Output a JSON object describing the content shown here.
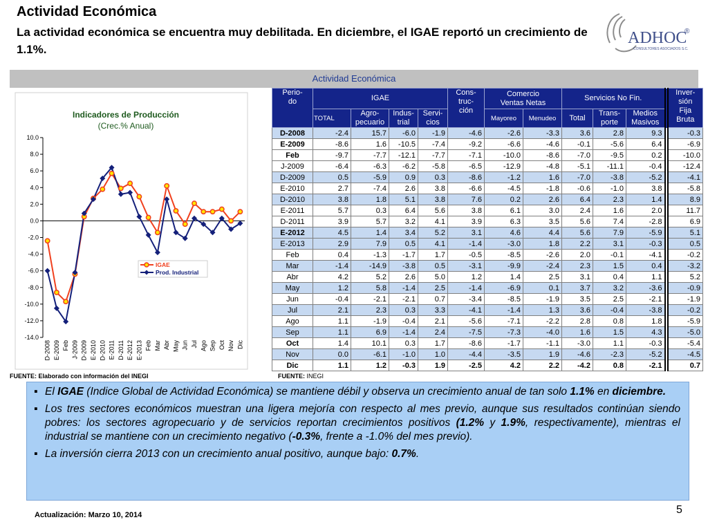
{
  "header": {
    "title": "Actividad Económica",
    "subtitle": "La actividad económica se encuentra muy debilitada. En diciembre, el IGAE reportó un crecimiento de 1.1%."
  },
  "logo": {
    "name": "ADHOC",
    "mark": "®",
    "tagline": "CONSULTORES ASOCIADOS S.C."
  },
  "banner": "Actividad Económica",
  "chart_data": {
    "type": "line",
    "title": "Indicadores de Producción",
    "subtitle": "(Crec.% Anual)",
    "categories": [
      "D-2008",
      "E-2009",
      "Feb",
      "J-2009",
      "D-2009",
      "E-2010",
      "D-2010",
      "E-2011",
      "D-2011",
      "E-2012",
      "E-2013",
      "Feb",
      "Mar",
      "Abr",
      "May",
      "Jun",
      "Jul",
      "Ago",
      "Sep",
      "Oct",
      "Nov",
      "Dic"
    ],
    "series": [
      {
        "name": "IGAE",
        "color": "#f0401e",
        "values": [
          -2.4,
          -8.6,
          -9.7,
          -6.4,
          0.5,
          2.7,
          3.8,
          5.7,
          3.9,
          4.5,
          2.9,
          0.4,
          -1.4,
          4.2,
          1.2,
          -0.4,
          2.1,
          1.1,
          1.1,
          1.4,
          0.0,
          1.1
        ]
      },
      {
        "name": "Prod. Industrial",
        "color": "#14207a",
        "values": [
          -6.0,
          -10.5,
          -12.1,
          -6.2,
          0.9,
          2.6,
          5.1,
          6.4,
          3.2,
          3.4,
          0.5,
          -1.7,
          -3.8,
          2.6,
          -1.4,
          -2.1,
          0.3,
          -0.4,
          -1.4,
          0.3,
          -1.0,
          -0.3
        ]
      }
    ],
    "ylim": [
      -14,
      10
    ],
    "yticks": [
      {
        "value": 10,
        "label": "10.0"
      },
      {
        "value": 8,
        "label": "8.0"
      },
      {
        "value": 6,
        "label": "6.0"
      },
      {
        "value": 4,
        "label": "4.0"
      },
      {
        "value": 2,
        "label": "2.0"
      },
      {
        "value": 0,
        "label": "0.0"
      },
      {
        "value": -2,
        "label": "-2.0"
      },
      {
        "value": -4,
        "label": "-4.0"
      },
      {
        "value": -6,
        "label": "-6.0"
      },
      {
        "value": -8,
        "label": "-8.0"
      },
      {
        "value": -10,
        "label": "-10.0"
      },
      {
        "value": -12,
        "label": "-12.0"
      },
      {
        "value": -14,
        "label": "-14.0"
      }
    ],
    "legend": "center-right"
  },
  "chart_source": "FUENTE: Elaborado con información del INEGI",
  "table": {
    "header": {
      "periodo": "Perio-\ndo",
      "igae": "IGAE",
      "total": "TOTAL",
      "agro": "Agro-\npecuario",
      "indus": "Indus-\ntrial",
      "servi": "Servi-\ncios",
      "cons": "Cons-\ntruc-\nción",
      "comercio": "Comercio\nVentas Netas",
      "mayoreo": "Mayoreo",
      "menudeo": "Menudeo",
      "servicios": "Servicios No Fin.",
      "sn_total": "Total",
      "transporte": "Trans-\nporte",
      "medios": "Medios\nMasivos",
      "inversion": "Inver-\nsión\nFija\nBruta"
    },
    "rows": [
      [
        "D-2008",
        "-2.4",
        "15.7",
        "-6.0",
        "-1.9",
        "-4.6",
        "-2.6",
        "-3.3",
        "3.6",
        "2.8",
        "9.3",
        "-0.3"
      ],
      [
        "E-2009",
        "-8.6",
        "1.6",
        "-10.5",
        "-7.4",
        "-9.2",
        "-6.6",
        "-4.6",
        "-0.1",
        "-5.6",
        "6.4",
        "-6.9"
      ],
      [
        "Feb",
        "-9.7",
        "-7.7",
        "-12.1",
        "-7.7",
        "-7.1",
        "-10.0",
        "-8.6",
        "-7.0",
        "-9.5",
        "0.2",
        "-10.0"
      ],
      [
        "J-2009",
        "-6.4",
        "-6.3",
        "-6.2",
        "-5.8",
        "-6.5",
        "-12.9",
        "-4.8",
        "-5.1",
        "-11.1",
        "-0.4",
        "-12.4"
      ],
      [
        "D-2009",
        "0.5",
        "-5.9",
        "0.9",
        "0.3",
        "-8.6",
        "-1.2",
        "1.6",
        "-7.0",
        "-3.8",
        "-5.2",
        "-4.1"
      ],
      [
        "E-2010",
        "2.7",
        "-7.4",
        "2.6",
        "3.8",
        "-6.6",
        "-4.5",
        "-1.8",
        "-0.6",
        "-1.0",
        "3.8",
        "-5.8"
      ],
      [
        "D-2010",
        "3.8",
        "1.8",
        "5.1",
        "3.8",
        "7.6",
        "0.2",
        "2.6",
        "6.4",
        "2.3",
        "1.4",
        "8.9"
      ],
      [
        "E-2011",
        "5.7",
        "0.3",
        "6.4",
        "5.6",
        "3.8",
        "6.1",
        "3.0",
        "2.4",
        "1.6",
        "2.0",
        "11.7"
      ],
      [
        "D-2011",
        "3.9",
        "5.7",
        "3.2",
        "4.1",
        "3.9",
        "6.3",
        "3.5",
        "5.6",
        "7.4",
        "-2.8",
        "6.9"
      ],
      [
        "E-2012",
        "4.5",
        "1.4",
        "3.4",
        "5.2",
        "3.1",
        "4.6",
        "4.4",
        "5.6",
        "7.9",
        "-5.9",
        "5.1"
      ],
      [
        "E-2013",
        "2.9",
        "7.9",
        "0.5",
        "4.1",
        "-1.4",
        "-3.0",
        "1.8",
        "2.2",
        "3.1",
        "-0.3",
        "0.5"
      ],
      [
        "Feb",
        "0.4",
        "-1.3",
        "-1.7",
        "1.7",
        "-0.5",
        "-8.5",
        "-2.6",
        "2.0",
        "-0.1",
        "-4.1",
        "-0.2"
      ],
      [
        "Mar",
        "-1.4",
        "-14.9",
        "-3.8",
        "0.5",
        "-3.1",
        "-9.9",
        "-2.4",
        "2.3",
        "1.5",
        "0.4",
        "-3.2"
      ],
      [
        "Abr",
        "4.2",
        "5.2",
        "2.6",
        "5.0",
        "1.2",
        "1.4",
        "2.5",
        "3.1",
        "0.4",
        "1.1",
        "5.2"
      ],
      [
        "May",
        "1.2",
        "5.8",
        "-1.4",
        "2.5",
        "-1.4",
        "-6.9",
        "0.1",
        "3.7",
        "3.2",
        "-3.6",
        "-0.9"
      ],
      [
        "Jun",
        "-0.4",
        "-2.1",
        "-2.1",
        "0.7",
        "-3.4",
        "-8.5",
        "-1.9",
        "3.5",
        "2.5",
        "-2.1",
        "-1.9"
      ],
      [
        "Jul",
        "2.1",
        "2.3",
        "0.3",
        "3.3",
        "-4.1",
        "-1.4",
        "1.3",
        "3.6",
        "-0.4",
        "-3.8",
        "-0.2"
      ],
      [
        "Ago",
        "1.1",
        "-1.9",
        "-0.4",
        "2.1",
        "-5.6",
        "-7.1",
        "-2.2",
        "2.8",
        "0.8",
        "1.8",
        "-5.9"
      ],
      [
        "Sep",
        "1.1",
        "6.9",
        "-1.4",
        "2.4",
        "-7.5",
        "-7.3",
        "-4.0",
        "1.6",
        "1.5",
        "4.3",
        "-5.0"
      ],
      [
        "Oct",
        "1.4",
        "10.1",
        "0.3",
        "1.7",
        "-8.6",
        "-1.7",
        "-1.1",
        "-3.0",
        "1.1",
        "-0.3",
        "-5.4"
      ],
      [
        "Nov",
        "0.0",
        "-6.1",
        "-1.0",
        "1.0",
        "-4.4",
        "-3.5",
        "1.9",
        "-4.6",
        "-2.3",
        "-5.2",
        "-4.5"
      ],
      [
        "Dic",
        "1.1",
        "1.2",
        "-0.3",
        "1.9",
        "-2.5",
        "4.2",
        "2.2",
        "-4.2",
        "0.8",
        "-2.1",
        "0.7"
      ]
    ]
  },
  "table_source": {
    "label": "FUENTE:",
    "text": "INEGI"
  },
  "bullets": [
    [
      "El ",
      "IGAE",
      " (Indice Global de Actividad Económica) se mantiene débil y observa un crecimiento anual de tan solo ",
      "1.1%",
      " en ",
      "diciembre."
    ],
    [
      "Los tres sectores económicos muestran una ligera mejoría con respecto al mes previo, aunque sus resultados continúan siendo pobres: los sectores agropecuario y de servicios reportan crecimientos positivos ",
      "(1.2%",
      " y ",
      "1.9%",
      ", respectivamente), mientras el industrial se mantiene con un crecimiento negativo (",
      "-0.3%",
      ", frente a -1.0% del mes previo)."
    ],
    [
      "La inversión cierra  2013 con un crecimiento anual positivo, aunque bajo: ",
      "0.7%",
      "."
    ]
  ],
  "footer": {
    "updated": "Actualización:  Marzo 10, 2014",
    "page": "5"
  }
}
